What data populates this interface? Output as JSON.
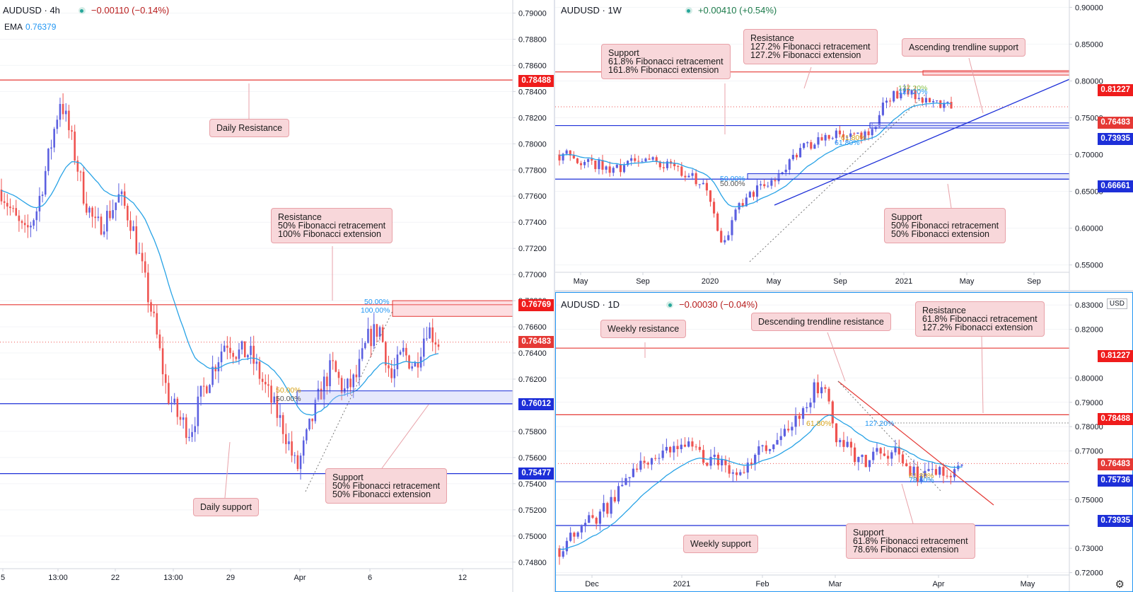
{
  "colors": {
    "bull": "#5b5fe0",
    "bear": "#ef5350",
    "ema": "#29a3e6",
    "red_line": "#e53935",
    "blue_line": "#1d2fd8"
  },
  "left": {
    "symbol": "AUDUSD · 4h",
    "change": "−0.00110 (−0.14%)",
    "ema_label": "EMA",
    "ema_value": "0.76379",
    "y_ticks": [
      "0.79000",
      "0.78800",
      "0.78600",
      "0.78400",
      "0.78200",
      "0.78000",
      "0.77800",
      "0.77600",
      "0.77400",
      "0.77200",
      "0.77000",
      "0.76800",
      "0.76600",
      "0.76400",
      "0.76200",
      "0.75800",
      "0.75600",
      "0.75400",
      "0.75200",
      "0.75000",
      "0.74800"
    ],
    "price_tags": [
      "0.78488",
      "0.76769",
      "0.76483",
      "0.76012",
      "0.75477"
    ],
    "x_ticks": [
      "5",
      "13:00",
      "22",
      "13:00",
      "29",
      "Apr",
      "6",
      "12"
    ],
    "fib_labels": [
      "50.00%",
      "100.00%",
      "50.00%",
      "50.00%"
    ],
    "notes": {
      "daily_resistance": "Daily Resistance",
      "resistance": "Resistance\n50% Fibonacci retracement\n100% Fibonacci extension",
      "support": "Support\n50% Fibonacci retracement\n50% Fibonacci extension",
      "daily_support": "Daily support"
    }
  },
  "top_right": {
    "symbol": "AUDUSD · 1W",
    "change": "+0.00410 (+0.54%)",
    "y_ticks": [
      "0.90000",
      "0.85000",
      "0.80000",
      "0.75000",
      "0.70000",
      "0.65000",
      "0.60000",
      "0.55000"
    ],
    "price_tags": [
      "0.81227",
      "0.76483",
      "0.73935",
      "0.66661"
    ],
    "x_ticks": [
      "May",
      "Sep",
      "2020",
      "May",
      "Sep",
      "2021",
      "May",
      "Sep"
    ],
    "fib_labels": [
      "137.20%",
      "127.20%",
      "61.80%",
      "61.80%",
      "50.00%",
      "50.00%"
    ],
    "notes": {
      "support": "Support\n61.8% Fibonacci retracement\n161.8% Fibonacci extension",
      "resistance": "Resistance\n127.2% Fibonacci retracement\n127.2% Fibonacci extension",
      "trendline": "Ascending trendline support",
      "support2": "Support\n50% Fibonacci retracement\n50% Fibonacci extension"
    }
  },
  "bottom_right": {
    "symbol": "AUDUSD · 1D",
    "change": "−0.00030 (−0.04%)",
    "currency": "USD",
    "y_ticks": [
      "0.83000",
      "0.82000",
      "0.80000",
      "0.79000",
      "0.78000",
      "0.77000",
      "0.75000",
      "0.73000",
      "0.72000"
    ],
    "price_tags": [
      "0.81227",
      "0.78488",
      "0.76483",
      "0.75736",
      "0.73935"
    ],
    "x_ticks": [
      "Dec",
      "2021",
      "Feb",
      "Mar",
      "Apr",
      "May"
    ],
    "fib_labels": [
      "61.80%",
      "127.20%",
      "61.80%",
      "78.60%"
    ],
    "notes": {
      "weekly_resistance": "Weekly resistance",
      "trendline": "Descending trendline resistance",
      "resistance": "Resistance\n61.8% Fibonacci retracement\n127.2% Fibonacci extension",
      "weekly_support": "Weekly support",
      "support": "Support\n61.8% Fibonacci retracement\n78.6% Fibonacci extension"
    }
  },
  "chart_data": [
    {
      "type": "candlestick",
      "symbol": "AUDUSD",
      "timeframe": "4h",
      "x_ticks": [
        "5",
        "13:00",
        "22",
        "13:00",
        "29",
        "Apr",
        "6",
        "12"
      ],
      "ylim": [
        0.7475,
        0.791
      ],
      "levels": [
        0.78488,
        0.76769,
        0.76012,
        0.75477
      ],
      "last_price": 0.76483,
      "ema": 0.76379,
      "close_path": [
        0.7765,
        0.7745,
        0.773,
        0.775,
        0.779,
        0.7835,
        0.78,
        0.776,
        0.7735,
        0.7745,
        0.776,
        0.774,
        0.77,
        0.766,
        0.761,
        0.759,
        0.758,
        0.761,
        0.763,
        0.765,
        0.764,
        0.764,
        0.762,
        0.76,
        0.758,
        0.755,
        0.758,
        0.761,
        0.763,
        0.761,
        0.762,
        0.765,
        0.766,
        0.762,
        0.764,
        0.763,
        0.766,
        0.7648
      ]
    },
    {
      "type": "candlestick",
      "symbol": "AUDUSD",
      "timeframe": "1W",
      "x_ticks": [
        "May",
        "Sep",
        "2020",
        "May",
        "Sep",
        "2021",
        "May",
        "Sep"
      ],
      "ylim": [
        0.54,
        0.91
      ],
      "levels": [
        0.81227,
        0.73935,
        0.66661
      ],
      "last_price": 0.76483,
      "close_path": [
        0.7,
        0.695,
        0.688,
        0.68,
        0.685,
        0.69,
        0.688,
        0.682,
        0.675,
        0.65,
        0.58,
        0.63,
        0.65,
        0.66,
        0.69,
        0.71,
        0.72,
        0.73,
        0.72,
        0.73,
        0.77,
        0.79,
        0.775,
        0.77,
        0.765
      ]
    },
    {
      "type": "candlestick",
      "symbol": "AUDUSD",
      "timeframe": "1D",
      "x_ticks": [
        "Dec",
        "2021",
        "Feb",
        "Mar",
        "Apr",
        "May"
      ],
      "ylim": [
        0.719,
        0.835
      ],
      "levels": [
        0.81227,
        0.78488,
        0.75736,
        0.73935
      ],
      "last_price": 0.76483,
      "close_path": [
        0.73,
        0.735,
        0.74,
        0.745,
        0.75,
        0.758,
        0.765,
        0.77,
        0.768,
        0.772,
        0.77,
        0.766,
        0.762,
        0.76,
        0.768,
        0.772,
        0.776,
        0.782,
        0.792,
        0.8,
        0.775,
        0.77,
        0.764,
        0.77,
        0.77,
        0.765,
        0.758,
        0.76,
        0.762,
        0.765
      ]
    }
  ]
}
